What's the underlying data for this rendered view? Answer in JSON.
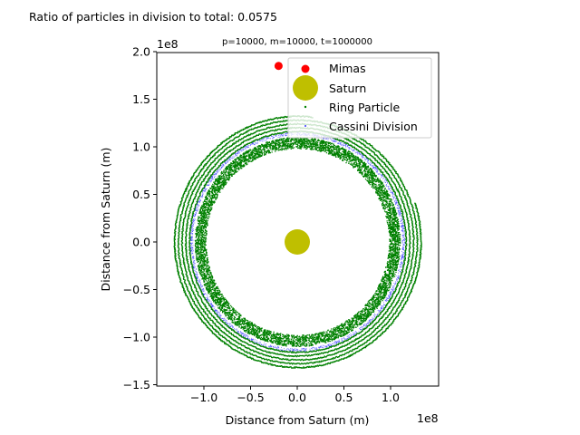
{
  "figure_title": "Ratio of particles in division to total: 0.0575",
  "chart_data": {
    "type": "scatter",
    "title": "p=10000, m=10000, t=1000000",
    "xlabel": "Distance from Saturn (m)",
    "ylabel": "Distance from Saturn (m)",
    "x_offset_label": "1e8",
    "y_offset_label": "1e8",
    "xlim": [
      -1.5,
      1.5
    ],
    "ylim": [
      -1.52,
      2.0
    ],
    "xticks": [
      -1.0,
      -0.5,
      0.0,
      0.5,
      1.0
    ],
    "xtick_labels": [
      "−1.0",
      "−0.5",
      "0.0",
      "0.5",
      "1.0"
    ],
    "yticks": [
      -1.5,
      -1.0,
      -0.5,
      0.0,
      0.5,
      1.0,
      1.5,
      2.0
    ],
    "ytick_labels": [
      "−1.5",
      "−1.0",
      "−0.5",
      "0.0",
      "0.5",
      "1.0",
      "1.5",
      "2.0"
    ],
    "grid": false,
    "legend_position": "top-right",
    "series": [
      {
        "name": "Mimas",
        "color": "#ff0000",
        "marker": "circle",
        "points": [
          [
            -0.2,
            1.85
          ]
        ]
      },
      {
        "name": "Saturn",
        "color": "#bfbf00",
        "marker": "circle-large",
        "points": [
          [
            0.0,
            0.0
          ]
        ]
      },
      {
        "name": "Ring Particle",
        "color": "#008000",
        "marker": "dot",
        "inner_band_radius": [
          0.98,
          1.1
        ],
        "outer_ring_radii": [
          1.16,
          1.2,
          1.24,
          1.28,
          1.32
        ]
      },
      {
        "name": "Cassini Division",
        "color": "#0000ff",
        "marker": "dot",
        "radius": [
          1.12,
          1.15
        ]
      }
    ]
  }
}
